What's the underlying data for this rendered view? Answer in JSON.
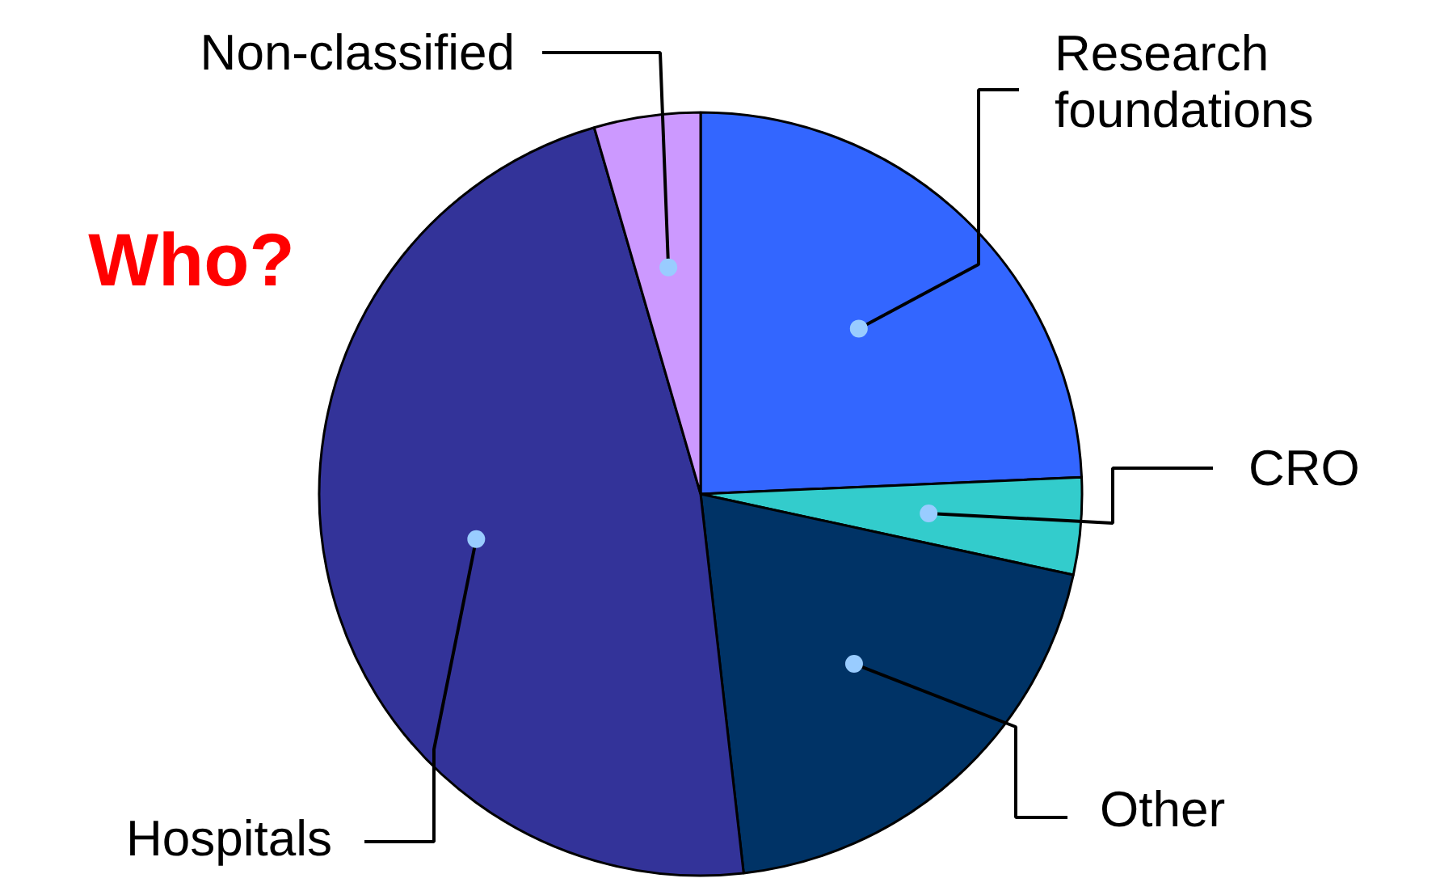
{
  "chart_data": {
    "type": "pie",
    "title": "Who?",
    "categories": [
      "Research foundations",
      "CRO",
      "Other",
      "Hospitals",
      "Non-classified"
    ],
    "values": [
      24.3,
      4.1,
      19.8,
      47.3,
      4.5
    ],
    "colors": [
      "#3366ff",
      "#33cccc",
      "#003366",
      "#333399",
      "#cc99ff"
    ]
  }
}
